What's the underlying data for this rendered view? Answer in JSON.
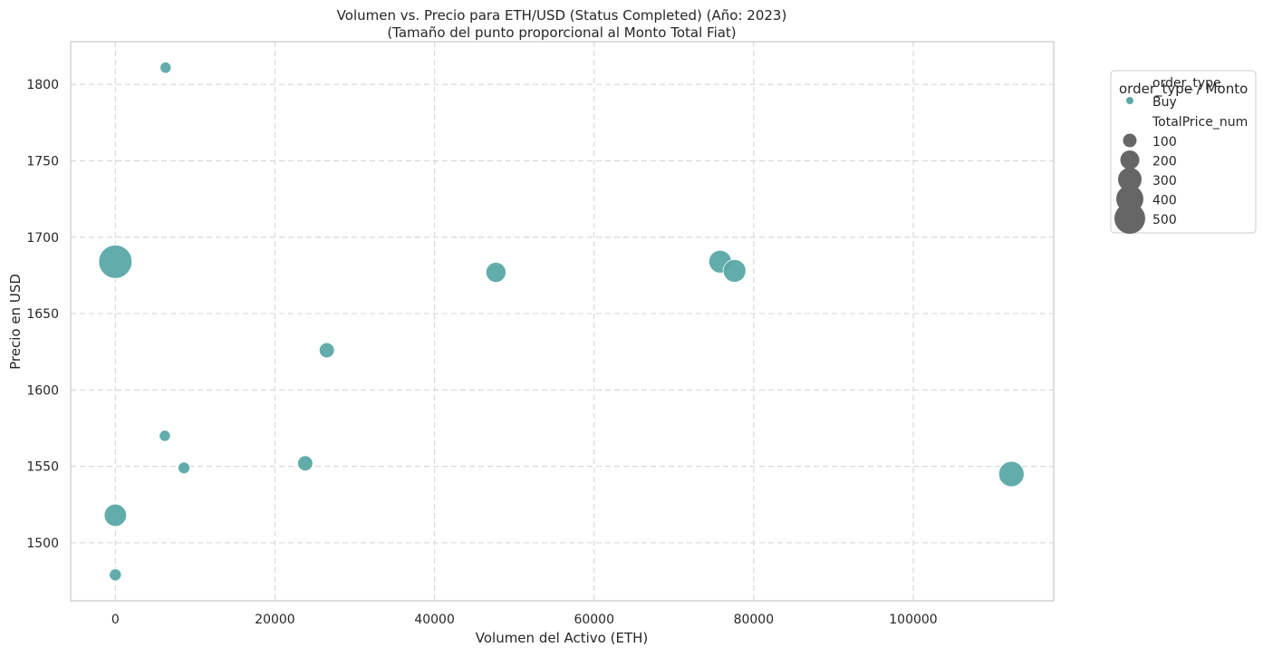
{
  "chart_data": {
    "type": "scatter",
    "title": "Volumen vs. Precio para ETH/USD (Status Completed) (Año: 2023)",
    "subtitle": "(Tamaño del punto proporcional al Monto Total Fiat)",
    "xlabel": "Volumen del Activo (ETH)",
    "ylabel": "Precio en USD",
    "xlim": [
      -5600,
      117600
    ],
    "ylim": [
      1462,
      1828
    ],
    "x_ticks": [
      0,
      20000,
      40000,
      60000,
      80000,
      100000
    ],
    "y_ticks": [
      1500,
      1550,
      1600,
      1650,
      1700,
      1750,
      1800
    ],
    "grid": true,
    "legend_position": "outside-top-right",
    "marker_color": "#5aa9a6",
    "legend_size_color": "#666666",
    "series": [
      {
        "name": "Buy",
        "points": [
          {
            "x": 6300,
            "y": 1811,
            "size": 12
          },
          {
            "x": 0,
            "y": 1684,
            "size": 540
          },
          {
            "x": 47700,
            "y": 1677,
            "size": 130
          },
          {
            "x": 75800,
            "y": 1684,
            "size": 190
          },
          {
            "x": 77600,
            "y": 1678,
            "size": 190
          },
          {
            "x": 26500,
            "y": 1626,
            "size": 50
          },
          {
            "x": 6200,
            "y": 1570,
            "size": 12
          },
          {
            "x": 8600,
            "y": 1549,
            "size": 16
          },
          {
            "x": 23800,
            "y": 1552,
            "size": 50
          },
          {
            "x": 112300,
            "y": 1545,
            "size": 260
          },
          {
            "x": 0,
            "y": 1518,
            "size": 180
          },
          {
            "x": 0,
            "y": 1479,
            "size": 18
          }
        ]
      }
    ],
    "legend": {
      "title": "order_type / Monto",
      "hue_title": "order_type",
      "hue_items": [
        "Buy"
      ],
      "size_title": "TotalPrice_num",
      "size_items": [
        "100",
        "200",
        "300",
        "400",
        "500"
      ],
      "size_values": [
        100,
        200,
        300,
        400,
        500
      ]
    }
  }
}
